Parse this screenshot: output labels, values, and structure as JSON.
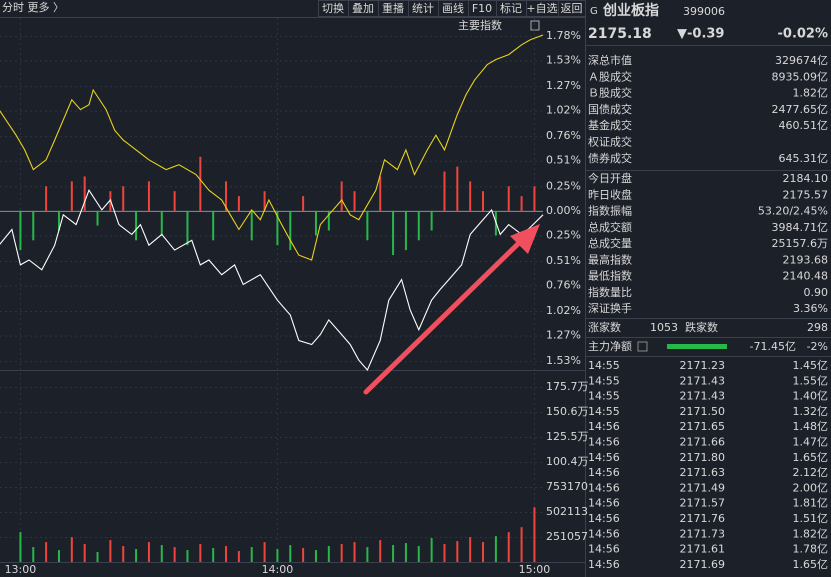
{
  "colors": {
    "up": "#f0443d",
    "down": "#27b84a"
  },
  "toolbar": {
    "left": "分时  更多 〉",
    "buttons": [
      "切换",
      "叠加",
      "重播",
      "统计",
      "画线",
      "F10",
      "标记",
      "+自选",
      "返回"
    ]
  },
  "quote": {
    "market": "G",
    "name": "创业板指",
    "code": "399006",
    "price": "2175.18",
    "change": "▼-0.39",
    "change_pct": "-0.02%"
  },
  "stats": {
    "rows": [
      {
        "label": "深总市值",
        "value": "329674亿"
      },
      {
        "label": "Ａ股成交",
        "value": "8935.09亿"
      },
      {
        "label": "Ｂ股成交",
        "value": "1.82亿"
      },
      {
        "label": "国债成交",
        "value": "2477.65亿"
      },
      {
        "label": "基金成交",
        "value": "460.51亿"
      },
      {
        "label": "权证成交"
      },
      {
        "label": "债券成交",
        "value": "645.31亿"
      }
    ],
    "rows2": [
      {
        "label": "今日开盘",
        "value": "2184.10",
        "tone": "up"
      },
      {
        "label": "昨日收盘",
        "value": "2175.57"
      },
      {
        "label": "指数振幅",
        "value": "53.20/2.45%"
      },
      {
        "label": "总成交额",
        "value": "3984.71亿"
      },
      {
        "label": "总成交量",
        "value": "25157.6万"
      },
      {
        "label": "最高指数",
        "value": "2193.68",
        "tone": "up"
      },
      {
        "label": "最低指数",
        "value": "2140.48",
        "tone": "down"
      },
      {
        "label": "指数量比",
        "value": "0.90"
      },
      {
        "label": "深证换手",
        "value": "3.36%"
      }
    ]
  },
  "breadth": {
    "up_label": "涨家数",
    "up_count": "1053",
    "down_label": "跌家数",
    "down_count": "298"
  },
  "main_flow": {
    "label": "主力净额",
    "amount": "-71.45亿",
    "pct": "-2%"
  },
  "ticks": {
    "rows": [
      [
        "14:55",
        "2171.23",
        "1.45亿"
      ],
      [
        "14:55",
        "2171.43",
        "1.55亿"
      ],
      [
        "14:55",
        "2171.43",
        "1.40亿"
      ],
      [
        "14:55",
        "2171.50",
        "1.32亿"
      ],
      [
        "14:56",
        "2171.65",
        "1.48亿"
      ],
      [
        "14:56",
        "2171.66",
        "1.47亿"
      ],
      [
        "14:56",
        "2171.80",
        "1.65亿"
      ],
      [
        "14:56",
        "2171.63",
        "2.12亿"
      ],
      [
        "14:56",
        "2171.49",
        "2.00亿"
      ],
      [
        "14:56",
        "2171.57",
        "1.81亿"
      ],
      [
        "14:56",
        "2171.76",
        "1.51亿"
      ],
      [
        "14:56",
        "2171.73",
        "1.82亿"
      ],
      [
        "14:56",
        "2171.61",
        "1.78亿"
      ],
      [
        "14:56",
        "2171.69",
        "1.65亿"
      ]
    ]
  },
  "chart_data": [
    {
      "type": "line",
      "annotation": "主要指数",
      "xlim": [
        -5,
        122
      ],
      "ylim": [
        -1.62,
        1.8
      ],
      "grid": true,
      "yticks": [
        {
          "value": 1.78,
          "label": "1.78%"
        },
        {
          "value": 1.53,
          "label": "1.53%"
        },
        {
          "value": 1.27,
          "label": "1.27%"
        },
        {
          "value": 1.02,
          "label": "1.02%"
        },
        {
          "value": 0.76,
          "label": "0.76%"
        },
        {
          "value": 0.51,
          "label": "0.51%"
        },
        {
          "value": 0.25,
          "label": "0.25%"
        },
        {
          "value": 0,
          "label": "0.00%"
        },
        {
          "value": -0.25,
          "label": "0.25%"
        },
        {
          "value": -0.51,
          "label": "0.51%"
        },
        {
          "value": -0.76,
          "label": "0.76%"
        },
        {
          "value": -1.02,
          "label": "1.02%"
        },
        {
          "value": -1.27,
          "label": "1.27%"
        },
        {
          "value": -1.53,
          "label": "1.53%"
        }
      ],
      "series": [
        {
          "color": "#ffffff",
          "x": [
            -5,
            -2,
            0,
            2,
            5,
            8,
            10,
            13,
            16,
            19,
            21,
            23,
            26,
            28,
            30,
            33,
            36,
            40,
            42,
            44,
            47,
            50,
            52,
            56,
            60,
            63,
            65,
            68,
            70,
            72,
            75,
            77,
            79,
            81,
            84,
            86,
            89,
            91,
            93,
            96,
            98,
            100,
            103,
            105,
            107,
            110,
            112,
            114,
            117,
            119,
            122
          ],
          "values": [
            -0.35,
            -0.19,
            -0.55,
            -0.5,
            -0.6,
            -0.35,
            -0.04,
            -0.14,
            0.21,
            0.01,
            0.11,
            -0.14,
            -0.24,
            -0.14,
            -0.35,
            -0.24,
            -0.4,
            -0.3,
            -0.55,
            -0.5,
            -0.65,
            -0.55,
            -0.75,
            -0.65,
            -0.91,
            -1.06,
            -1.32,
            -1.36,
            -1.26,
            -1.11,
            -1.26,
            -1.36,
            -1.52,
            -1.62,
            -1.32,
            -0.91,
            -0.7,
            -1.01,
            -1.21,
            -0.91,
            -0.8,
            -0.7,
            -0.55,
            -0.24,
            -0.14,
            0.01,
            -0.24,
            -0.14,
            -0.24,
            -0.17,
            -0.04
          ]
        },
        {
          "color": "#e8d21d",
          "x": [
            -5,
            -1,
            1,
            3,
            6,
            8,
            12,
            14,
            16,
            17,
            20,
            22,
            24,
            27,
            30,
            34,
            37,
            41,
            44,
            47,
            49,
            51,
            54,
            56,
            58,
            61,
            63,
            65,
            68,
            70,
            72,
            75,
            77,
            79,
            83,
            85,
            88,
            90,
            92,
            95,
            97,
            99,
            102,
            104,
            106,
            109,
            111,
            114,
            117,
            119,
            122
          ],
          "values": [
            1.03,
            0.77,
            0.62,
            0.42,
            0.52,
            0.72,
            1.13,
            1.03,
            1.08,
            1.23,
            1.03,
            0.82,
            0.72,
            0.62,
            0.52,
            0.42,
            0.47,
            0.37,
            0.21,
            0.11,
            -0.04,
            -0.19,
            0.01,
            -0.09,
            0.11,
            -0.14,
            -0.3,
            -0.45,
            -0.5,
            -0.14,
            -0.04,
            0.11,
            -0.04,
            -0.09,
            0.21,
            0.52,
            0.42,
            0.62,
            0.37,
            0.62,
            0.77,
            0.62,
            0.98,
            1.18,
            1.33,
            1.49,
            1.54,
            1.59,
            1.69,
            1.74,
            1.79
          ]
        }
      ]
    },
    {
      "type": "bar",
      "xlim": [
        -5,
        122
      ],
      "ylim": [
        -1.62,
        1.8
      ],
      "x": [
        0,
        3,
        6,
        9,
        12,
        15,
        18,
        21,
        24,
        27,
        30,
        33,
        36,
        39,
        42,
        45,
        48,
        51,
        54,
        57,
        60,
        63,
        66,
        69,
        72,
        75,
        78,
        81,
        84,
        87,
        90,
        93,
        96,
        99,
        102,
        105,
        108,
        111,
        114,
        117,
        120
      ],
      "values": [
        -0.4,
        -0.3,
        0.25,
        -0.2,
        0.3,
        0.35,
        -0.15,
        0.2,
        0.25,
        -0.3,
        0.3,
        -0.25,
        0.2,
        -0.35,
        0.55,
        -0.3,
        0.3,
        0.15,
        -0.3,
        0.2,
        -0.35,
        -0.4,
        0.15,
        -0.25,
        -0.2,
        0.3,
        0.2,
        -0.3,
        0.35,
        -0.45,
        -0.4,
        -0.3,
        -0.2,
        0.4,
        0.45,
        0.3,
        0.2,
        -0.25,
        0.25,
        0.15,
        0.25
      ]
    },
    {
      "type": "bar",
      "xlim": [
        -5,
        122
      ],
      "ylim": [
        0,
        1928000
      ],
      "grid": true,
      "yticks": [
        {
          "value": 1757396,
          "label": "175.7万"
        },
        {
          "value": 1506340,
          "label": "150.6万"
        },
        {
          "value": 1255283,
          "label": "125.5万"
        },
        {
          "value": 1004226,
          "label": "100.4万"
        },
        753170,
        502113,
        251057
      ],
      "xticks": [
        {
          "value": 0,
          "label": "13:00"
        },
        {
          "value": 60,
          "label": "14:00"
        },
        {
          "value": 120,
          "label": "15:00"
        }
      ],
      "x": [
        0,
        3,
        6,
        9,
        12,
        15,
        18,
        21,
        24,
        27,
        30,
        33,
        36,
        39,
        42,
        45,
        48,
        51,
        54,
        57,
        60,
        63,
        66,
        69,
        72,
        75,
        78,
        81,
        84,
        87,
        90,
        93,
        96,
        99,
        102,
        105,
        108,
        111,
        114,
        117,
        120
      ],
      "values": [
        300000,
        150000,
        200000,
        120000,
        250000,
        180000,
        100000,
        220000,
        160000,
        130000,
        200000,
        170000,
        150000,
        120000,
        180000,
        140000,
        160000,
        110000,
        150000,
        200000,
        130000,
        170000,
        140000,
        120000,
        160000,
        180000,
        200000,
        150000,
        220000,
        170000,
        190000,
        160000,
        240000,
        180000,
        210000,
        250000,
        200000,
        260000,
        300000,
        350000,
        550000
      ]
    }
  ]
}
